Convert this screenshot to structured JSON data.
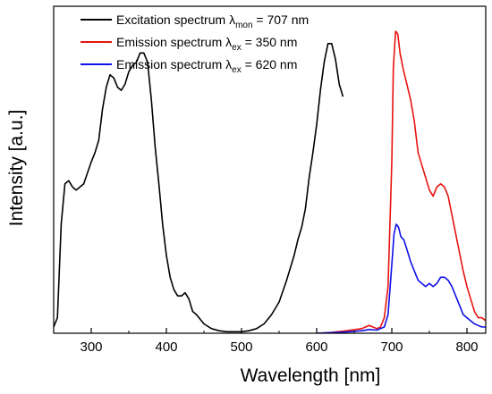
{
  "chart_data": {
    "type": "line",
    "xlabel": "Wavelength [nm]",
    "ylabel": "Intensity [a.u.]",
    "xlim": [
      250,
      825
    ],
    "ylim": [
      0,
      1.05
    ],
    "x_ticks": [
      300,
      400,
      500,
      600,
      700,
      800
    ],
    "y_ticks_labeled": false,
    "grid": false,
    "legend_position": "top-left",
    "series": [
      {
        "name": "Excitation spectrum λmon = 707 nm",
        "legend_main": "Excitation spectrum ",
        "legend_symbol": "λ",
        "legend_sub": "mon",
        "legend_tail": " = 707 nm",
        "color": "#000000",
        "x": [
          250,
          255,
          260,
          265,
          270,
          275,
          280,
          290,
          300,
          305,
          310,
          315,
          320,
          325,
          330,
          335,
          340,
          345,
          350,
          355,
          360,
          365,
          370,
          375,
          380,
          385,
          390,
          395,
          400,
          405,
          410,
          415,
          420,
          425,
          430,
          435,
          440,
          450,
          460,
          470,
          480,
          490,
          500,
          510,
          520,
          530,
          540,
          550,
          560,
          570,
          575,
          580,
          585,
          590,
          595,
          600,
          605,
          610,
          615,
          620,
          625,
          630,
          635
        ],
        "y": [
          0.02,
          0.05,
          0.35,
          0.48,
          0.49,
          0.47,
          0.46,
          0.48,
          0.55,
          0.58,
          0.62,
          0.72,
          0.79,
          0.83,
          0.82,
          0.79,
          0.78,
          0.8,
          0.84,
          0.86,
          0.87,
          0.9,
          0.9,
          0.87,
          0.75,
          0.6,
          0.48,
          0.35,
          0.25,
          0.18,
          0.14,
          0.12,
          0.12,
          0.13,
          0.11,
          0.07,
          0.06,
          0.03,
          0.015,
          0.008,
          0.005,
          0.005,
          0.005,
          0.008,
          0.015,
          0.03,
          0.06,
          0.1,
          0.17,
          0.25,
          0.3,
          0.34,
          0.4,
          0.5,
          0.58,
          0.67,
          0.78,
          0.87,
          0.93,
          0.93,
          0.88,
          0.8,
          0.76
        ]
      },
      {
        "name": "Emission spectrum λex = 350 nm",
        "legend_main": "Emission spectrum ",
        "legend_symbol": "λ",
        "legend_sub": "ex",
        "legend_tail": " = 350 nm",
        "color": "#e8120e",
        "x": [
          600,
          620,
          640,
          660,
          665,
          670,
          675,
          680,
          685,
          690,
          695,
          700,
          702,
          705,
          708,
          711,
          715,
          720,
          725,
          730,
          735,
          740,
          745,
          750,
          755,
          760,
          765,
          770,
          775,
          780,
          785,
          790,
          795,
          800,
          805,
          810,
          815,
          820,
          825
        ],
        "y": [
          0.0,
          0.003,
          0.008,
          0.015,
          0.02,
          0.025,
          0.02,
          0.015,
          0.02,
          0.05,
          0.15,
          0.55,
          0.85,
          0.97,
          0.96,
          0.9,
          0.85,
          0.8,
          0.75,
          0.68,
          0.58,
          0.54,
          0.5,
          0.46,
          0.44,
          0.47,
          0.48,
          0.47,
          0.44,
          0.38,
          0.32,
          0.26,
          0.2,
          0.15,
          0.11,
          0.07,
          0.05,
          0.05,
          0.04
        ]
      },
      {
        "name": "Emission spectrum λex = 620 nm",
        "legend_main": "Emission spectrum ",
        "legend_symbol": "λ",
        "legend_sub": "ex",
        "legend_tail": " = 620 nm",
        "color": "#1010e8",
        "x": [
          600,
          620,
          640,
          660,
          670,
          680,
          690,
          695,
          700,
          703,
          706,
          709,
          712,
          716,
          720,
          725,
          730,
          735,
          740,
          745,
          750,
          755,
          760,
          765,
          770,
          775,
          780,
          785,
          790,
          795,
          800,
          805,
          810,
          815,
          820,
          825
        ],
        "y": [
          0.0,
          0.002,
          0.004,
          0.008,
          0.012,
          0.01,
          0.02,
          0.06,
          0.22,
          0.32,
          0.35,
          0.34,
          0.31,
          0.3,
          0.27,
          0.23,
          0.2,
          0.17,
          0.16,
          0.15,
          0.16,
          0.15,
          0.16,
          0.18,
          0.18,
          0.17,
          0.15,
          0.12,
          0.09,
          0.06,
          0.05,
          0.04,
          0.03,
          0.025,
          0.02,
          0.02
        ]
      }
    ]
  }
}
